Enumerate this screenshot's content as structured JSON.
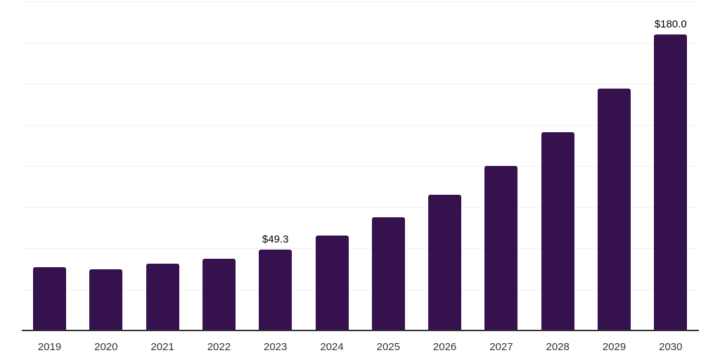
{
  "chart_data": {
    "type": "bar",
    "title": "",
    "xlabel": "",
    "ylabel": "",
    "categories": [
      "2019",
      "2020",
      "2021",
      "2022",
      "2023",
      "2024",
      "2025",
      "2026",
      "2027",
      "2028",
      "2029",
      "2030"
    ],
    "values": [
      38.5,
      37.3,
      40.4,
      43.6,
      49.3,
      57.7,
      68.8,
      82.5,
      100.0,
      120.6,
      147.1,
      180.0
    ],
    "data_labels": [
      "",
      "",
      "",
      "",
      "$49.3",
      "",
      "",
      "",
      "",
      "",
      "",
      "$180.0"
    ],
    "ylim": [
      0,
      200
    ],
    "gridline_step": 25,
    "grid": true,
    "legend_position": "none",
    "colors": {
      "bar": "#35124E",
      "axis": "#333333",
      "gridline": "#f0f0f0",
      "tick_label": "#333333",
      "value_label": "#000000",
      "background": "#ffffff"
    }
  }
}
